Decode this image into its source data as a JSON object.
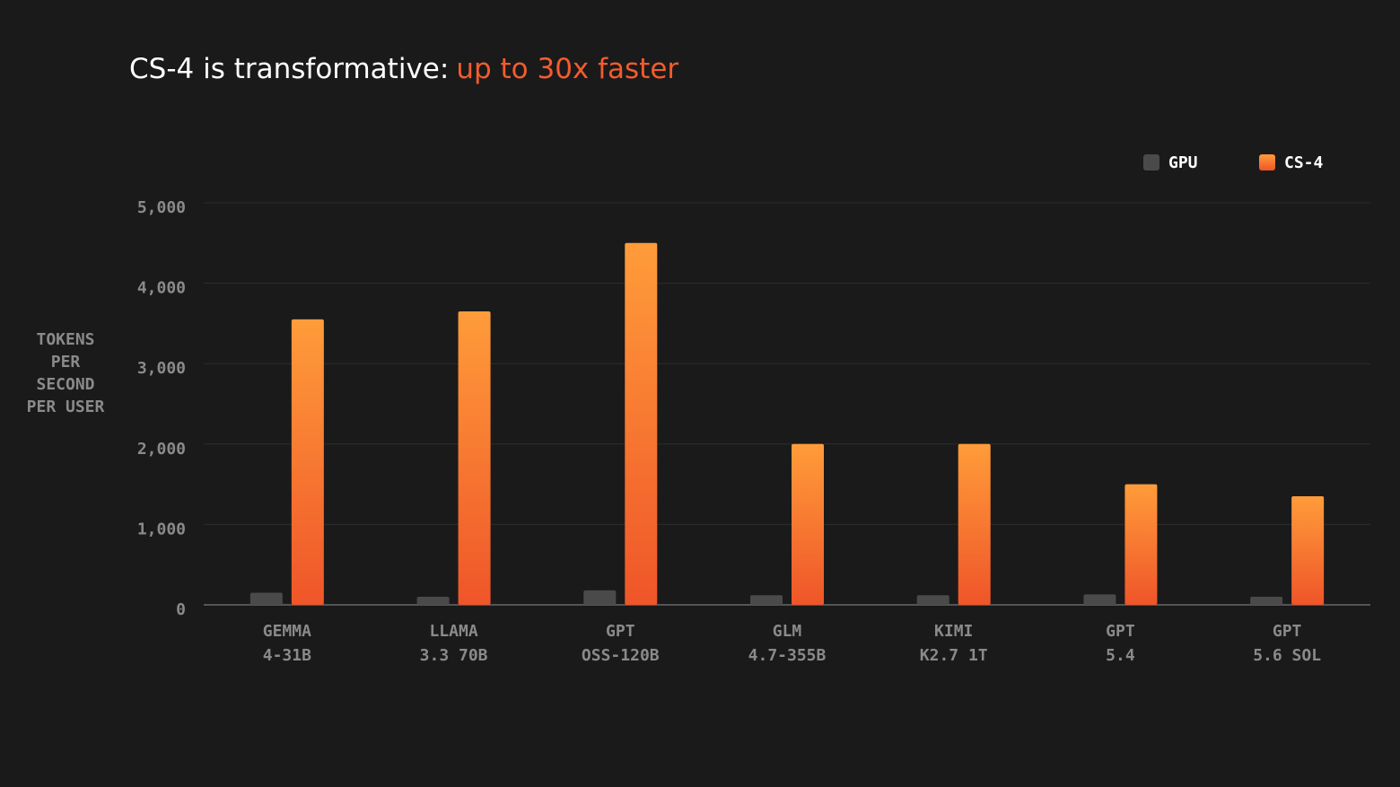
{
  "chart_data": {
    "type": "bar",
    "title": "CS-4 is transformative:",
    "title_highlight": "up to 30x faster",
    "title_highlight_color": "#f25c2e",
    "ylabel": [
      "TOKENS",
      "PER",
      "SECOND",
      "PER USER"
    ],
    "categories": [
      [
        "GEMMA",
        "4-31B"
      ],
      [
        "LLAMA",
        "3.3 70B"
      ],
      [
        "GPT",
        "OSS-120B"
      ],
      [
        "GLM",
        "4.7-355B"
      ],
      [
        "KIMI",
        "K2.7 1T"
      ],
      [
        "GPT",
        "5.4"
      ],
      [
        "GPT",
        "5.6 SOL"
      ]
    ],
    "series": [
      {
        "name": "GPU",
        "color": "#4a4a4a",
        "values": [
          150,
          100,
          180,
          120,
          120,
          130,
          100
        ]
      },
      {
        "name": "CS-4",
        "color": "#ff9c3a",
        "color_end": "#ef5529",
        "values": [
          3550,
          3650,
          4500,
          2000,
          2000,
          1500,
          1350
        ]
      }
    ],
    "ylim": [
      0,
      5000
    ],
    "yticks": [
      0,
      {
        "value": 1000,
        "label": "1,000"
      },
      {
        "value": 2000,
        "label": "2,000"
      },
      {
        "value": 3000,
        "label": "3,000"
      },
      {
        "value": 4000,
        "label": "4,000"
      },
      {
        "value": 5000,
        "label": "5,000"
      }
    ],
    "grid": true,
    "legend": "top-right"
  }
}
